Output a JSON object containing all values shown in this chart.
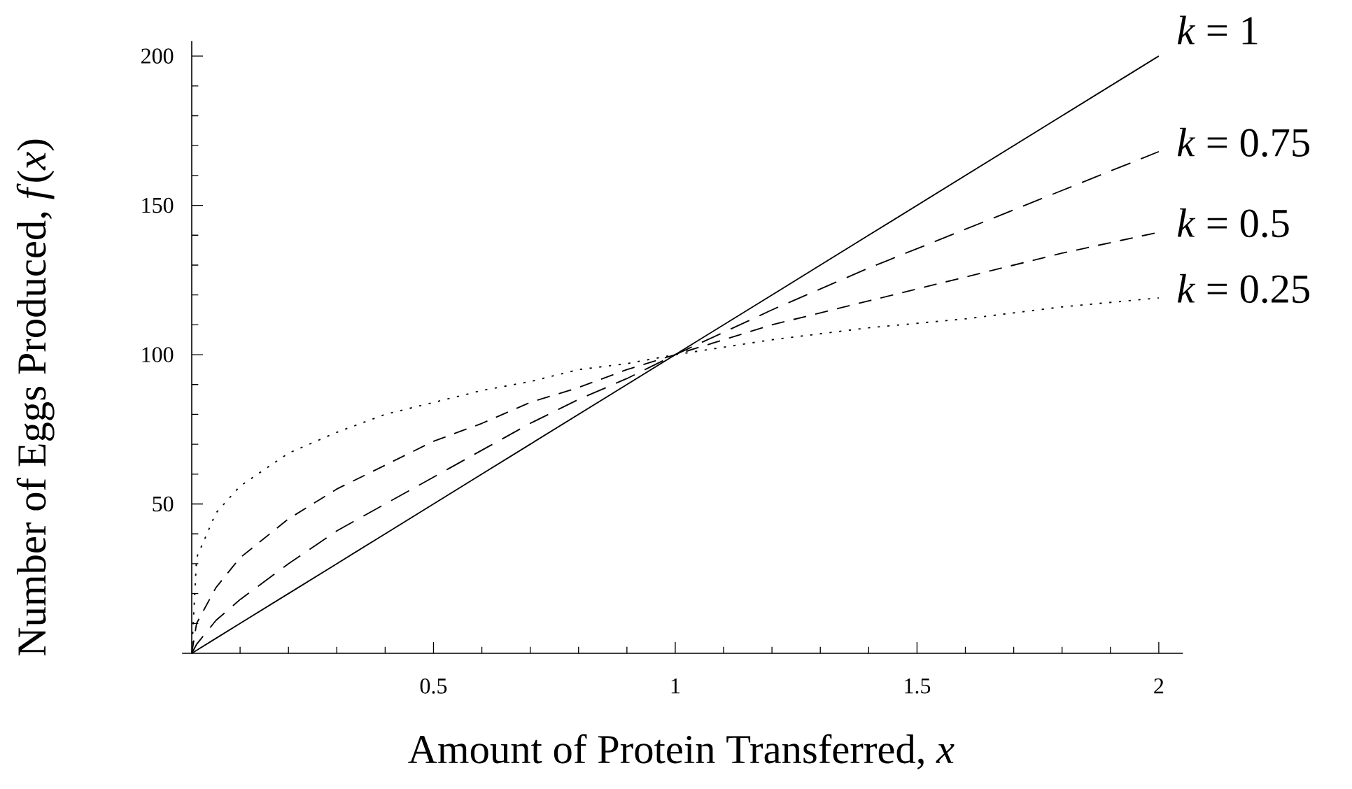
{
  "chart_data": {
    "type": "line",
    "xlabel": "Amount of Protein Transferred, *x*",
    "ylabel": "Number of Eggs Produced, *f*(*x*)",
    "x": [
      0,
      0.01,
      0.05,
      0.1,
      0.2,
      0.3,
      0.4,
      0.5,
      0.6,
      0.7,
      0.8,
      0.9,
      1,
      1.2,
      1.4,
      1.6,
      1.8,
      2
    ],
    "series": [
      {
        "name": "*k* = 1",
        "color": "#000000",
        "line_style": "solid",
        "values": [
          0,
          1,
          5,
          10,
          20,
          30,
          40,
          50,
          60,
          70,
          80,
          90,
          100,
          120,
          140,
          160,
          180,
          200
        ]
      },
      {
        "name": "*k* = 0.75",
        "color": "#000000",
        "line_style": "dashed",
        "values": [
          0,
          3,
          11,
          18,
          30,
          41,
          50,
          59,
          68,
          77,
          85,
          92,
          100,
          115,
          129,
          142,
          155,
          168
        ]
      },
      {
        "name": "*k* = 0.5",
        "color": "#000000",
        "line_style": "dashed",
        "values": [
          0,
          10,
          22,
          32,
          45,
          55,
          63,
          71,
          77,
          84,
          89,
          95,
          100,
          110,
          118,
          126,
          134,
          141
        ]
      },
      {
        "name": "*k* = 0.25",
        "color": "#000000",
        "line_style": "dotted",
        "values": [
          0,
          32,
          47,
          56,
          67,
          74,
          80,
          84,
          88,
          91,
          95,
          97,
          100,
          105,
          109,
          112,
          116,
          119
        ]
      }
    ],
    "xlim": [
      -0.02,
      2.05
    ],
    "ylim": [
      0,
      205
    ],
    "xticks": [
      0.5,
      1,
      1.5,
      2,
      {
        "value": 0.1,
        "label": null
      },
      {
        "value": 0.2,
        "label": null
      },
      {
        "value": 0.3,
        "label": null
      },
      {
        "value": 0.4,
        "label": null
      },
      {
        "value": 0.6,
        "label": null
      },
      {
        "value": 0.7,
        "label": null
      },
      {
        "value": 0.8,
        "label": null
      },
      {
        "value": 0.9,
        "label": null
      },
      {
        "value": 1.1,
        "label": null
      },
      {
        "value": 1.2,
        "label": null
      },
      {
        "value": 1.3,
        "label": null
      },
      {
        "value": 1.4,
        "label": null
      },
      {
        "value": 1.6,
        "label": null
      },
      {
        "value": 1.7,
        "label": null
      },
      {
        "value": 1.8,
        "label": null
      },
      {
        "value": 1.9,
        "label": null
      }
    ],
    "yticks": [
      50,
      100,
      150,
      200,
      {
        "value": 10,
        "label": null
      },
      {
        "value": 20,
        "label": null
      },
      {
        "value": 30,
        "label": null
      },
      {
        "value": 40,
        "label": null
      },
      {
        "value": 60,
        "label": null
      },
      {
        "value": 70,
        "label": null
      },
      {
        "value": 80,
        "label": null
      },
      {
        "value": 90,
        "label": null
      },
      {
        "value": 110,
        "label": null
      },
      {
        "value": 120,
        "label": null
      },
      {
        "value": 130,
        "label": null
      },
      {
        "value": 140,
        "label": null
      },
      {
        "value": 160,
        "label": null
      },
      {
        "value": 170,
        "label": null
      },
      {
        "value": 180,
        "label": null
      },
      {
        "value": 190,
        "label": null
      }
    ],
    "grid": false,
    "legend": false,
    "marker": "none"
  }
}
